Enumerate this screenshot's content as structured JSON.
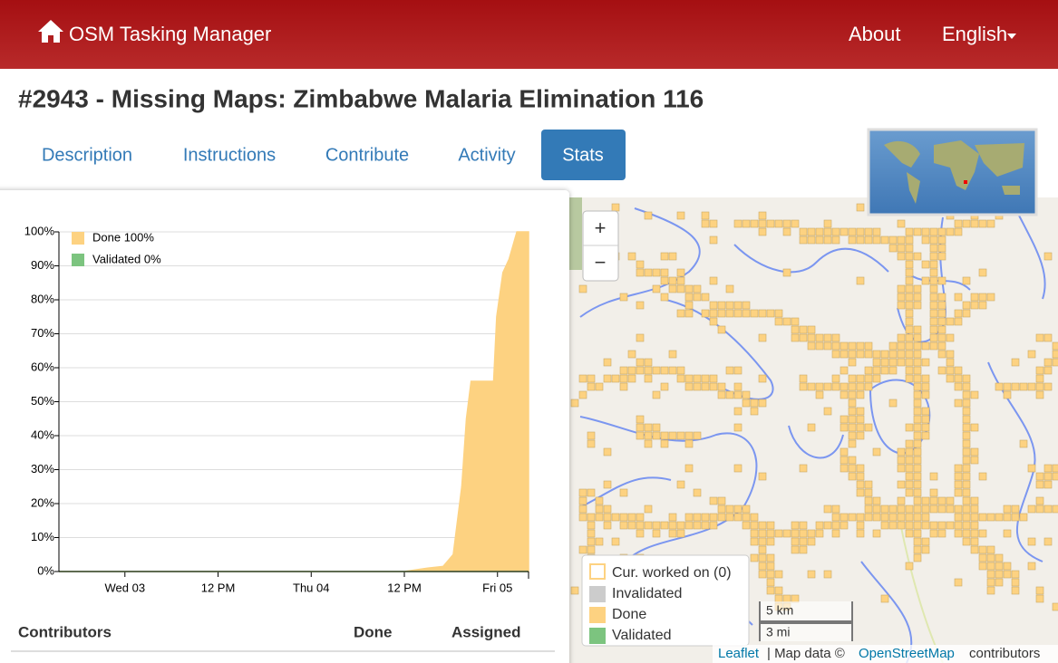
{
  "navbar": {
    "brand": "OSM Tasking Manager",
    "links": [
      "About",
      "English"
    ]
  },
  "title": "#2943 - Missing Maps: Zimbabwe Malaria Elimination 116",
  "tabs": [
    "Description",
    "Instructions",
    "Contribute",
    "Activity",
    "Stats"
  ],
  "chart_data": {
    "type": "area",
    "x": [
      -8.5,
      36,
      39,
      41,
      42.3,
      43.4,
      44,
      44.6,
      47.5,
      47.9,
      48.7,
      49.5,
      50.5,
      52
    ],
    "xlim": [
      -8.5,
      52
    ],
    "xticks": [
      {
        "value": 0,
        "label": "Wed 03"
      },
      {
        "value": 12,
        "label": "12 PM"
      },
      {
        "value": 24,
        "label": "Thu 04"
      },
      {
        "value": 36,
        "label": "12 PM"
      },
      {
        "value": 48,
        "label": "Fri 05"
      }
    ],
    "ylim": [
      0,
      100
    ],
    "yticks": [
      {
        "value": 0,
        "label": "0%"
      },
      {
        "value": 10,
        "label": "10%"
      },
      {
        "value": 20,
        "label": "20%"
      },
      {
        "value": 30,
        "label": "30%"
      },
      {
        "value": 40,
        "label": "40%"
      },
      {
        "value": 50,
        "label": "50%"
      },
      {
        "value": 60,
        "label": "60%"
      },
      {
        "value": 70,
        "label": "70%"
      },
      {
        "value": 80,
        "label": "80%"
      },
      {
        "value": 90,
        "label": "90%"
      },
      {
        "value": 100,
        "label": "100%"
      }
    ],
    "grid": true,
    "series": [
      {
        "name": "Done 100%",
        "color": "#fdd281",
        "values": [
          0,
          0,
          1,
          1.5,
          5,
          25,
          45,
          56,
          56,
          75,
          88,
          92,
          100,
          100
        ]
      },
      {
        "name": "Validated 0%",
        "color": "#7cc47f",
        "values": [
          0,
          0,
          0,
          0,
          0,
          0,
          0,
          0,
          0,
          0,
          0,
          0,
          0,
          0
        ]
      }
    ]
  },
  "contributors_table": {
    "headers": [
      "Contributors",
      "Done",
      "Assigned"
    ]
  },
  "map": {
    "zoom": [
      "+",
      "−"
    ],
    "legend": [
      "Cur. worked on (0)",
      "Invalidated",
      "Done",
      "Validated"
    ],
    "scale": [
      "5 km",
      "3 mi"
    ],
    "attribution": [
      "Leaflet",
      "| Map data ©",
      "OpenStreetMap",
      "contributors"
    ]
  }
}
